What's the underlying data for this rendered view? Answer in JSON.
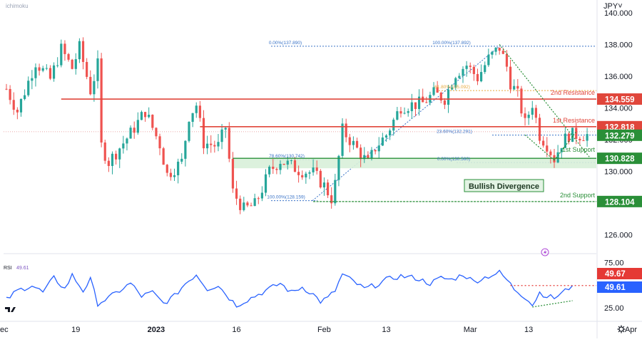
{
  "watermark": "ichimoku",
  "currency": "JPY",
  "currency_menu_glyph": "˅",
  "chart_data": {
    "type": "candlestick",
    "title": "",
    "ylim": [
      125.0,
      140.8
    ],
    "yticks": [
      "140.000",
      "138.000",
      "136.000",
      "134.000",
      "132.000",
      "130.000",
      "126.000"
    ],
    "yticks_values": [
      140,
      138,
      136,
      134,
      132,
      130,
      126
    ],
    "xticks": [
      {
        "label": "ec",
        "idx": -1
      },
      {
        "label": "19",
        "idx": 19
      },
      {
        "label": "2023",
        "idx": 41
      },
      {
        "label": "16",
        "idx": 63
      },
      {
        "label": "Feb",
        "idx": 87
      },
      {
        "label": "13",
        "idx": 104
      },
      {
        "label": "Mar",
        "idx": 127
      },
      {
        "label": "13",
        "idx": 143
      },
      {
        "label": "Apr",
        "idx": 171
      }
    ],
    "candle_count": 160,
    "close_path": [
      [
        0,
        135.2
      ],
      [
        3,
        133.8
      ],
      [
        8,
        136.9
      ],
      [
        12,
        135.8
      ],
      [
        15,
        137.7
      ],
      [
        18,
        136.5
      ],
      [
        20,
        137.8
      ],
      [
        23,
        135.1
      ],
      [
        25,
        136.7
      ],
      [
        26,
        131.6
      ],
      [
        28,
        130.6
      ],
      [
        34,
        132.4
      ],
      [
        38,
        133.8
      ],
      [
        42,
        131.7
      ],
      [
        44,
        129.8
      ],
      [
        48,
        130.6
      ],
      [
        50,
        133.5
      ],
      [
        52,
        134.2
      ],
      [
        54,
        131.8
      ],
      [
        58,
        131.6
      ],
      [
        60,
        132.8
      ],
      [
        62,
        128.7
      ],
      [
        65,
        127.6
      ],
      [
        68,
        127.9
      ],
      [
        70,
        128.9
      ],
      [
        72,
        130.0
      ],
      [
        75,
        130.7
      ],
      [
        80,
        130.1
      ],
      [
        84,
        129.9
      ],
      [
        87,
        129.1
      ],
      [
        89,
        128.3
      ],
      [
        90,
        129.2
      ],
      [
        92,
        132.6
      ],
      [
        96,
        131.4
      ],
      [
        99,
        130.5
      ],
      [
        101,
        131.5
      ],
      [
        104,
        132.3
      ],
      [
        108,
        134.1
      ],
      [
        111,
        134.2
      ],
      [
        114,
        134.3
      ],
      [
        117,
        134.9
      ],
      [
        120,
        134.6
      ],
      [
        123,
        136.2
      ],
      [
        126,
        136.7
      ],
      [
        129,
        135.9
      ],
      [
        132,
        137.1
      ],
      [
        135,
        137.8
      ],
      [
        137,
        136.6
      ],
      [
        138,
        135.6
      ],
      [
        140,
        134.8
      ],
      [
        142,
        133.0
      ],
      [
        144,
        134.3
      ],
      [
        146,
        132.3
      ],
      [
        148,
        131.7
      ],
      [
        150,
        130.8
      ],
      [
        152,
        131.8
      ],
      [
        154,
        132.3
      ]
    ],
    "levels": [
      {
        "label": "2nd Resistance",
        "value": 134.559,
        "price_text": "134.559",
        "color": "#e0463b"
      },
      {
        "label": "1st Resistance",
        "value": 132.818,
        "price_text": "132.818",
        "color": "#e0463b"
      },
      {
        "label": "",
        "value": 132.279,
        "price_text": "132.279",
        "color": "#2a8f38"
      },
      {
        "label": "1st Support",
        "value": 130.828,
        "price_text": "130.828",
        "color": "#2a8f38"
      },
      {
        "label": "2nd Support",
        "value": 128.104,
        "price_text": "128.104",
        "color": "#2a8f38"
      }
    ],
    "fibonacci": [
      {
        "text": "0.00%(137.890)",
        "value": 137.89,
        "color": "#3a73c7"
      },
      {
        "text": "100.00%(137.892)",
        "value": 137.89,
        "color": "#3a73c7"
      },
      {
        "text": "61.80%(135.092)",
        "value": 135.092,
        "color": "#e6a83a"
      },
      {
        "text": "23.60%(132.291)",
        "value": 132.291,
        "color": "#3a73c7"
      },
      {
        "text": "78.60%(130.742)",
        "value": 130.742,
        "color": "#3a73c7"
      },
      {
        "text": "0.00%(130.560)",
        "value": 130.56,
        "color": "#3a73c7"
      },
      {
        "text": "100.00%(128.159)",
        "value": 128.159,
        "color": "#3a73c7"
      }
    ],
    "annotation": "Bullish Divergence",
    "rsi": {
      "label": "RSI",
      "value": "49.61",
      "ref_value": "49.67",
      "ylim": [
        15,
        80
      ],
      "yticks": [
        "75.00",
        "25.00"
      ],
      "yticks_values": [
        75,
        25
      ],
      "path": [
        [
          0,
          34
        ],
        [
          3,
          44
        ],
        [
          7,
          50
        ],
        [
          10,
          42
        ],
        [
          13,
          58
        ],
        [
          16,
          46
        ],
        [
          18,
          61
        ],
        [
          21,
          44
        ],
        [
          23,
          56
        ],
        [
          25,
          30
        ],
        [
          28,
          36
        ],
        [
          31,
          44
        ],
        [
          34,
          52
        ],
        [
          37,
          38
        ],
        [
          40,
          42
        ],
        [
          43,
          30
        ],
        [
          46,
          38
        ],
        [
          49,
          52
        ],
        [
          52,
          62
        ],
        [
          55,
          46
        ],
        [
          58,
          50
        ],
        [
          61,
          36
        ],
        [
          63,
          28
        ],
        [
          66,
          34
        ],
        [
          69,
          40
        ],
        [
          72,
          46
        ],
        [
          75,
          52
        ],
        [
          78,
          42
        ],
        [
          81,
          48
        ],
        [
          84,
          40
        ],
        [
          86,
          32
        ],
        [
          88,
          36
        ],
        [
          90,
          44
        ],
        [
          92,
          62
        ],
        [
          95,
          54
        ],
        [
          98,
          46
        ],
        [
          101,
          50
        ],
        [
          104,
          56
        ],
        [
          108,
          60
        ],
        [
          112,
          58
        ],
        [
          116,
          52
        ],
        [
          119,
          58
        ],
        [
          122,
          56
        ],
        [
          125,
          62
        ],
        [
          128,
          54
        ],
        [
          132,
          60
        ],
        [
          135,
          64
        ],
        [
          137,
          56
        ],
        [
          139,
          46
        ],
        [
          141,
          40
        ],
        [
          143,
          34
        ],
        [
          144,
          28
        ],
        [
          146,
          42
        ],
        [
          148,
          38
        ],
        [
          150,
          36
        ],
        [
          152,
          41
        ],
        [
          155,
          49.6
        ]
      ]
    }
  }
}
